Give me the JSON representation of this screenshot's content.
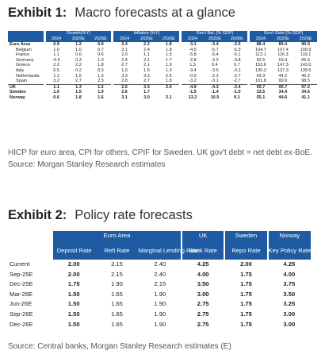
{
  "exhibit1": {
    "label": "Exhibit 1:",
    "title": "Macro forecasts at a glance",
    "groups": [
      "Growth(%Y)",
      "Inflation (%Y)",
      "Gov't Bal. (% GDP)",
      "Gov't Debt (% GDP)"
    ],
    "years": [
      "2024",
      "2025E",
      "2026E"
    ],
    "rows": [
      {
        "name": "Euro Area",
        "bold": true,
        "indent": false,
        "vals": [
          "0.9",
          "1.2",
          "0.9",
          "2.4",
          "2.2",
          "1.8",
          "-3.1",
          "-3.4",
          "-3.5",
          "88.4",
          "89.4",
          "90.9"
        ]
      },
      {
        "name": "Belgium",
        "bold": false,
        "indent": true,
        "vals": [
          "1.0",
          "1.0",
          "0.7",
          "3.1",
          "2.4",
          "1.8",
          "-4.5",
          "-5.7",
          "-5.3",
          "104.7",
          "107.4",
          "109.9"
        ]
      },
      {
        "name": "France",
        "bold": false,
        "indent": true,
        "vals": [
          "1.1",
          "0.6",
          "0.6",
          "2.0",
          "1.1",
          "1.5",
          "-5.8",
          "-5.4",
          "-5.1",
          "113.1",
          "116.3",
          "119.1"
        ]
      },
      {
        "name": "Germany",
        "bold": false,
        "indent": true,
        "vals": [
          "-0.5",
          "0.3",
          "1.0",
          "2.4",
          "2.1",
          "1.7",
          "-2.8",
          "-3.2",
          "-3.8",
          "62.5",
          "63.4",
          "65.5"
        ]
      },
      {
        "name": "Greece",
        "bold": false,
        "indent": true,
        "vals": [
          "2.3",
          "2.2",
          "1.8",
          "2.7",
          "2.1",
          "1.9",
          "1.3",
          "0.4",
          "0.7",
          "153.6",
          "147.3",
          "143.0"
        ]
      },
      {
        "name": "Italy",
        "bold": false,
        "indent": true,
        "vals": [
          "0.5",
          "0.2",
          "0.3",
          "1.0",
          "1.5",
          "1.3",
          "-3.4",
          "-3.5",
          "-3.2",
          "135.3",
          "137.3",
          "139.5"
        ]
      },
      {
        "name": "Netherlands",
        "bold": false,
        "indent": true,
        "vals": [
          "1.1",
          "1.5",
          "1.3",
          "3.3",
          "3.3",
          "2.5",
          "-0.9",
          "-2.3",
          "-2.7",
          "43.3",
          "44.2",
          "45.2"
        ]
      },
      {
        "name": "Spain",
        "bold": false,
        "indent": true,
        "vals": [
          "3.2",
          "2.7",
          "2.3",
          "2.8",
          "2.7",
          "1.8",
          "-3.2",
          "-3.1",
          "-2.7",
          "101.8",
          "99.9",
          "98.5"
        ]
      },
      {
        "name": "UK",
        "bold": true,
        "indent": false,
        "vals": [
          "1.1",
          "1.3",
          "1.2",
          "2.5",
          "3.3",
          "2.0",
          "-4.9",
          "-4.3",
          "-3.4",
          "95.7",
          "95.7",
          "97.2"
        ]
      },
      {
        "name": "Sweden",
        "bold": true,
        "indent": false,
        "vals": [
          "1.0",
          "1.5",
          "1.9",
          "2.6",
          "1.7",
          "",
          "-1.5",
          "-1.4",
          "-1.0",
          "33.5",
          "34.4",
          "34.6"
        ]
      },
      {
        "name": "Norway",
        "bold": true,
        "indent": false,
        "vals": [
          "0.6",
          "1.8",
          "1.6",
          "3.1",
          "3.0",
          "2.1",
          "13.2",
          "10.9",
          "9.1",
          "55.1",
          "44.6",
          "41.1"
        ]
      }
    ],
    "note": "HICP for euro area, CPI for others, CPIF for Sweden. UK gov't debt = net debt ex-BoE. Source: Morgan Stanley Research estimates"
  },
  "exhibit2": {
    "label": "Exhibit 2:",
    "title": "Policy rate forecasts",
    "groups": [
      "Euro Area",
      "UK",
      "Sweden",
      "Norway"
    ],
    "headers": [
      "Deposit Rate",
      "Refi Rate",
      "Marginal Lending Rate",
      "Bank Rate",
      "Repo Rate",
      "Key Policy Rate"
    ],
    "rows": [
      {
        "period": "Current",
        "vals": [
          "2.00",
          "2.15",
          "2.40",
          "4.25",
          "2.00",
          "4.25"
        ]
      },
      {
        "period": "Sep-25E",
        "vals": [
          "2.00",
          "2.15",
          "2.40",
          "4.00",
          "1.75",
          "4.00"
        ]
      },
      {
        "period": "Dec-25E",
        "vals": [
          "1.75",
          "1.90",
          "2.15",
          "3.50",
          "1.75",
          "3.75"
        ]
      },
      {
        "period": "Mar-26E",
        "vals": [
          "1.50",
          "1.65",
          "1.90",
          "3.00",
          "1.75",
          "3.50"
        ]
      },
      {
        "period": "Jun-26E",
        "vals": [
          "1.50",
          "1.65",
          "1.90",
          "2.75",
          "1.75",
          "3.25"
        ]
      },
      {
        "period": "Sep-26E",
        "vals": [
          "1.50",
          "1.65",
          "1.90",
          "2.75",
          "1.75",
          "3.00"
        ]
      },
      {
        "period": "Dec-26E",
        "vals": [
          "1.50",
          "1.65",
          "1.90",
          "2.75",
          "1.75",
          "3.00"
        ]
      }
    ],
    "note": "Source: Central banks, Morgan Stanley Research estimates (E)"
  }
}
